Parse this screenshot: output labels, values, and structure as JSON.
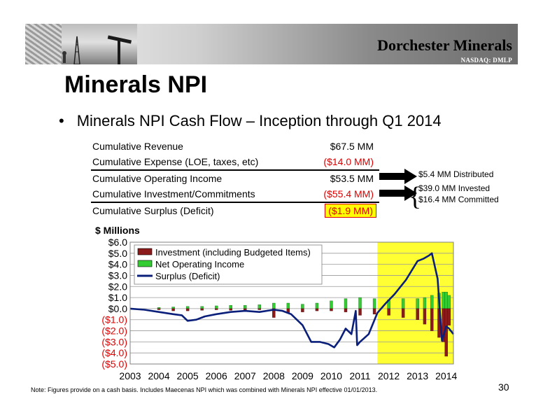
{
  "header": {
    "brand": "Dorchester Minerals",
    "ticker": "NASDAQ: DMLP"
  },
  "title": "Minerals NPI",
  "bullet": "Minerals NPI Cash Flow – Inception through Q1 2014",
  "summary": [
    {
      "label": "Cumulative Revenue",
      "value": "$67.5 MM",
      "style": "normal"
    },
    {
      "label": "Cumulative Expense (LOE, taxes, etc)",
      "value": "($14.0 MM)",
      "style": "red"
    },
    {
      "label": "Cumulative Operating Income",
      "value": "$53.5 MM",
      "style": "normal"
    },
    {
      "label": "Cumulative Investment/Commitments",
      "value": "($55.4 MM)",
      "style": "red"
    },
    {
      "label": "Cumulative Surplus (Deficit)",
      "value": "($1.9 MM)",
      "style": "highlight"
    }
  ],
  "side_notes": {
    "distributed": "$5.4 MM Distributed",
    "invested": "$39.0 MM Invested",
    "committed": "$16.4 MM Committed"
  },
  "colors": {
    "investment": "#8b1a1a",
    "net_operating": "#33cc33",
    "surplus": "#0a1f7a",
    "highlight": "#ffff33",
    "negative_tick": "#e00000"
  },
  "chart_data": {
    "type": "bar",
    "ylabel": "$ Millions",
    "ylim": [
      -5,
      6
    ],
    "ytick_labels": [
      "$6.0",
      "$5.0",
      "$4.0",
      "$3.0",
      "$2.0",
      "$1.0",
      "$0.0",
      "($1.0)",
      "($2.0)",
      "($3.0)",
      "($4.0)",
      "($5.0)"
    ],
    "xlim": [
      2003,
      2014.25
    ],
    "xtick_labels": [
      "2003",
      "2004",
      "2005",
      "2006",
      "2007",
      "2008",
      "2009",
      "2010",
      "2011",
      "2012",
      "2013",
      "2014"
    ],
    "grid": true,
    "legend_position": "top-left",
    "highlight_range": [
      2011.6,
      2014.25
    ],
    "series": [
      {
        "name": "Investment (including Budgeted Items)",
        "kind": "bar",
        "x": [
          2004,
          2004.5,
          2005,
          2005.5,
          2006,
          2006.5,
          2007,
          2007.5,
          2008,
          2008.5,
          2009,
          2009.5,
          2010,
          2010.5,
          2011,
          2011.5,
          2012,
          2012.5,
          2013,
          2013.25,
          2013.5,
          2013.75,
          2013.9,
          2014,
          2014.1
        ],
        "values": [
          -0.1,
          -0.2,
          -0.2,
          -0.15,
          -0.1,
          -0.15,
          -0.2,
          -0.1,
          -0.8,
          -0.4,
          -0.3,
          -0.2,
          -0.2,
          -0.3,
          -0.6,
          -0.5,
          -0.6,
          -0.8,
          -1.0,
          -1.4,
          -2.0,
          -2.6,
          -3.0,
          -4.3,
          -1.5
        ]
      },
      {
        "name": "Net Operating Income",
        "kind": "bar",
        "x": [
          2004,
          2004.5,
          2005,
          2005.5,
          2006,
          2006.5,
          2007,
          2007.5,
          2008,
          2008.5,
          2009,
          2009.5,
          2010,
          2010.5,
          2011,
          2011.5,
          2012,
          2012.5,
          2013,
          2013.25,
          2013.5,
          2013.75,
          2013.9,
          2014,
          2014.1
        ],
        "values": [
          0.1,
          0.15,
          0.2,
          0.2,
          0.25,
          0.3,
          0.3,
          0.35,
          0.5,
          0.5,
          0.4,
          0.5,
          0.7,
          0.9,
          1.0,
          0.9,
          0.8,
          0.9,
          0.9,
          1.0,
          1.2,
          1.4,
          1.5,
          1.5,
          1.2
        ]
      },
      {
        "name": "Surplus (Deficit)",
        "kind": "line",
        "x": [
          2003,
          2003.5,
          2004,
          2004.5,
          2004.8,
          2005,
          2005.3,
          2005.6,
          2006,
          2006.5,
          2007,
          2007.5,
          2008,
          2008.3,
          2008.6,
          2009,
          2009.3,
          2009.6,
          2009.9,
          2010.1,
          2010.3,
          2010.5,
          2010.7,
          2010.85,
          2010.9,
          2011,
          2011.3,
          2011.6,
          2011.9,
          2012.2,
          2012.6,
          2013,
          2013.2,
          2013.4,
          2013.5,
          2013.7,
          2013.85,
          2014,
          2014.1,
          2014.25
        ],
        "values": [
          0.0,
          -0.1,
          -0.3,
          -0.5,
          -0.6,
          -1.1,
          -1.0,
          -0.7,
          -0.5,
          -0.3,
          -0.2,
          -0.3,
          -0.1,
          -0.2,
          -0.5,
          -1.5,
          -3.0,
          -3.0,
          -3.2,
          -3.5,
          -2.8,
          -1.8,
          -2.3,
          -0.2,
          -3.3,
          -3.0,
          -2.3,
          -0.4,
          0.5,
          1.3,
          2.6,
          4.3,
          4.5,
          4.8,
          5.0,
          2.7,
          -2.9,
          -1.6,
          -1.8,
          -2.3
        ]
      }
    ]
  },
  "footnote": "Note: Figures provide on a cash basis.  Includes Maecenas NPI which was combined with Minerals NPI effective 01/01/2013.",
  "page_number": "30"
}
